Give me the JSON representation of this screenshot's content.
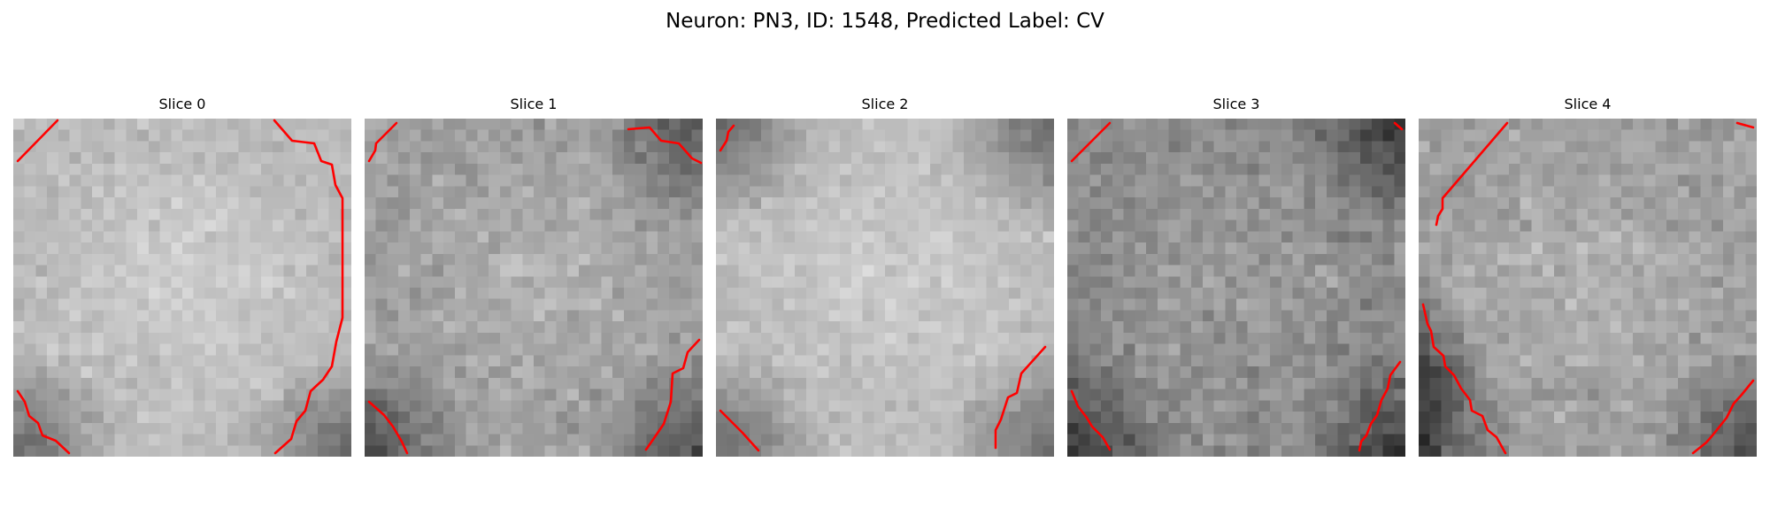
{
  "title": "Neuron: PN3, ID: 1548, Predicted Label: CV",
  "contour_color": "#ff0000",
  "slices": [
    {
      "label": "Slice 0",
      "brightness": "bright",
      "dark_corners": [
        "bottom-left",
        "bottom-right"
      ]
    },
    {
      "label": "Slice 1",
      "brightness": "medium",
      "dark_corners": [
        "bottom-left",
        "top-right",
        "bottom-right"
      ]
    },
    {
      "label": "Slice 2",
      "brightness": "bright",
      "dark_corners": [
        "top-left",
        "top-right",
        "bottom-left",
        "bottom-right"
      ]
    },
    {
      "label": "Slice 3",
      "brightness": "dark",
      "dark_corners": [
        "top-right",
        "bottom-left",
        "bottom-right"
      ]
    },
    {
      "label": "Slice 4",
      "brightness": "medium",
      "dark_corners": [
        "bottom-left",
        "bottom-right",
        "left"
      ]
    }
  ]
}
